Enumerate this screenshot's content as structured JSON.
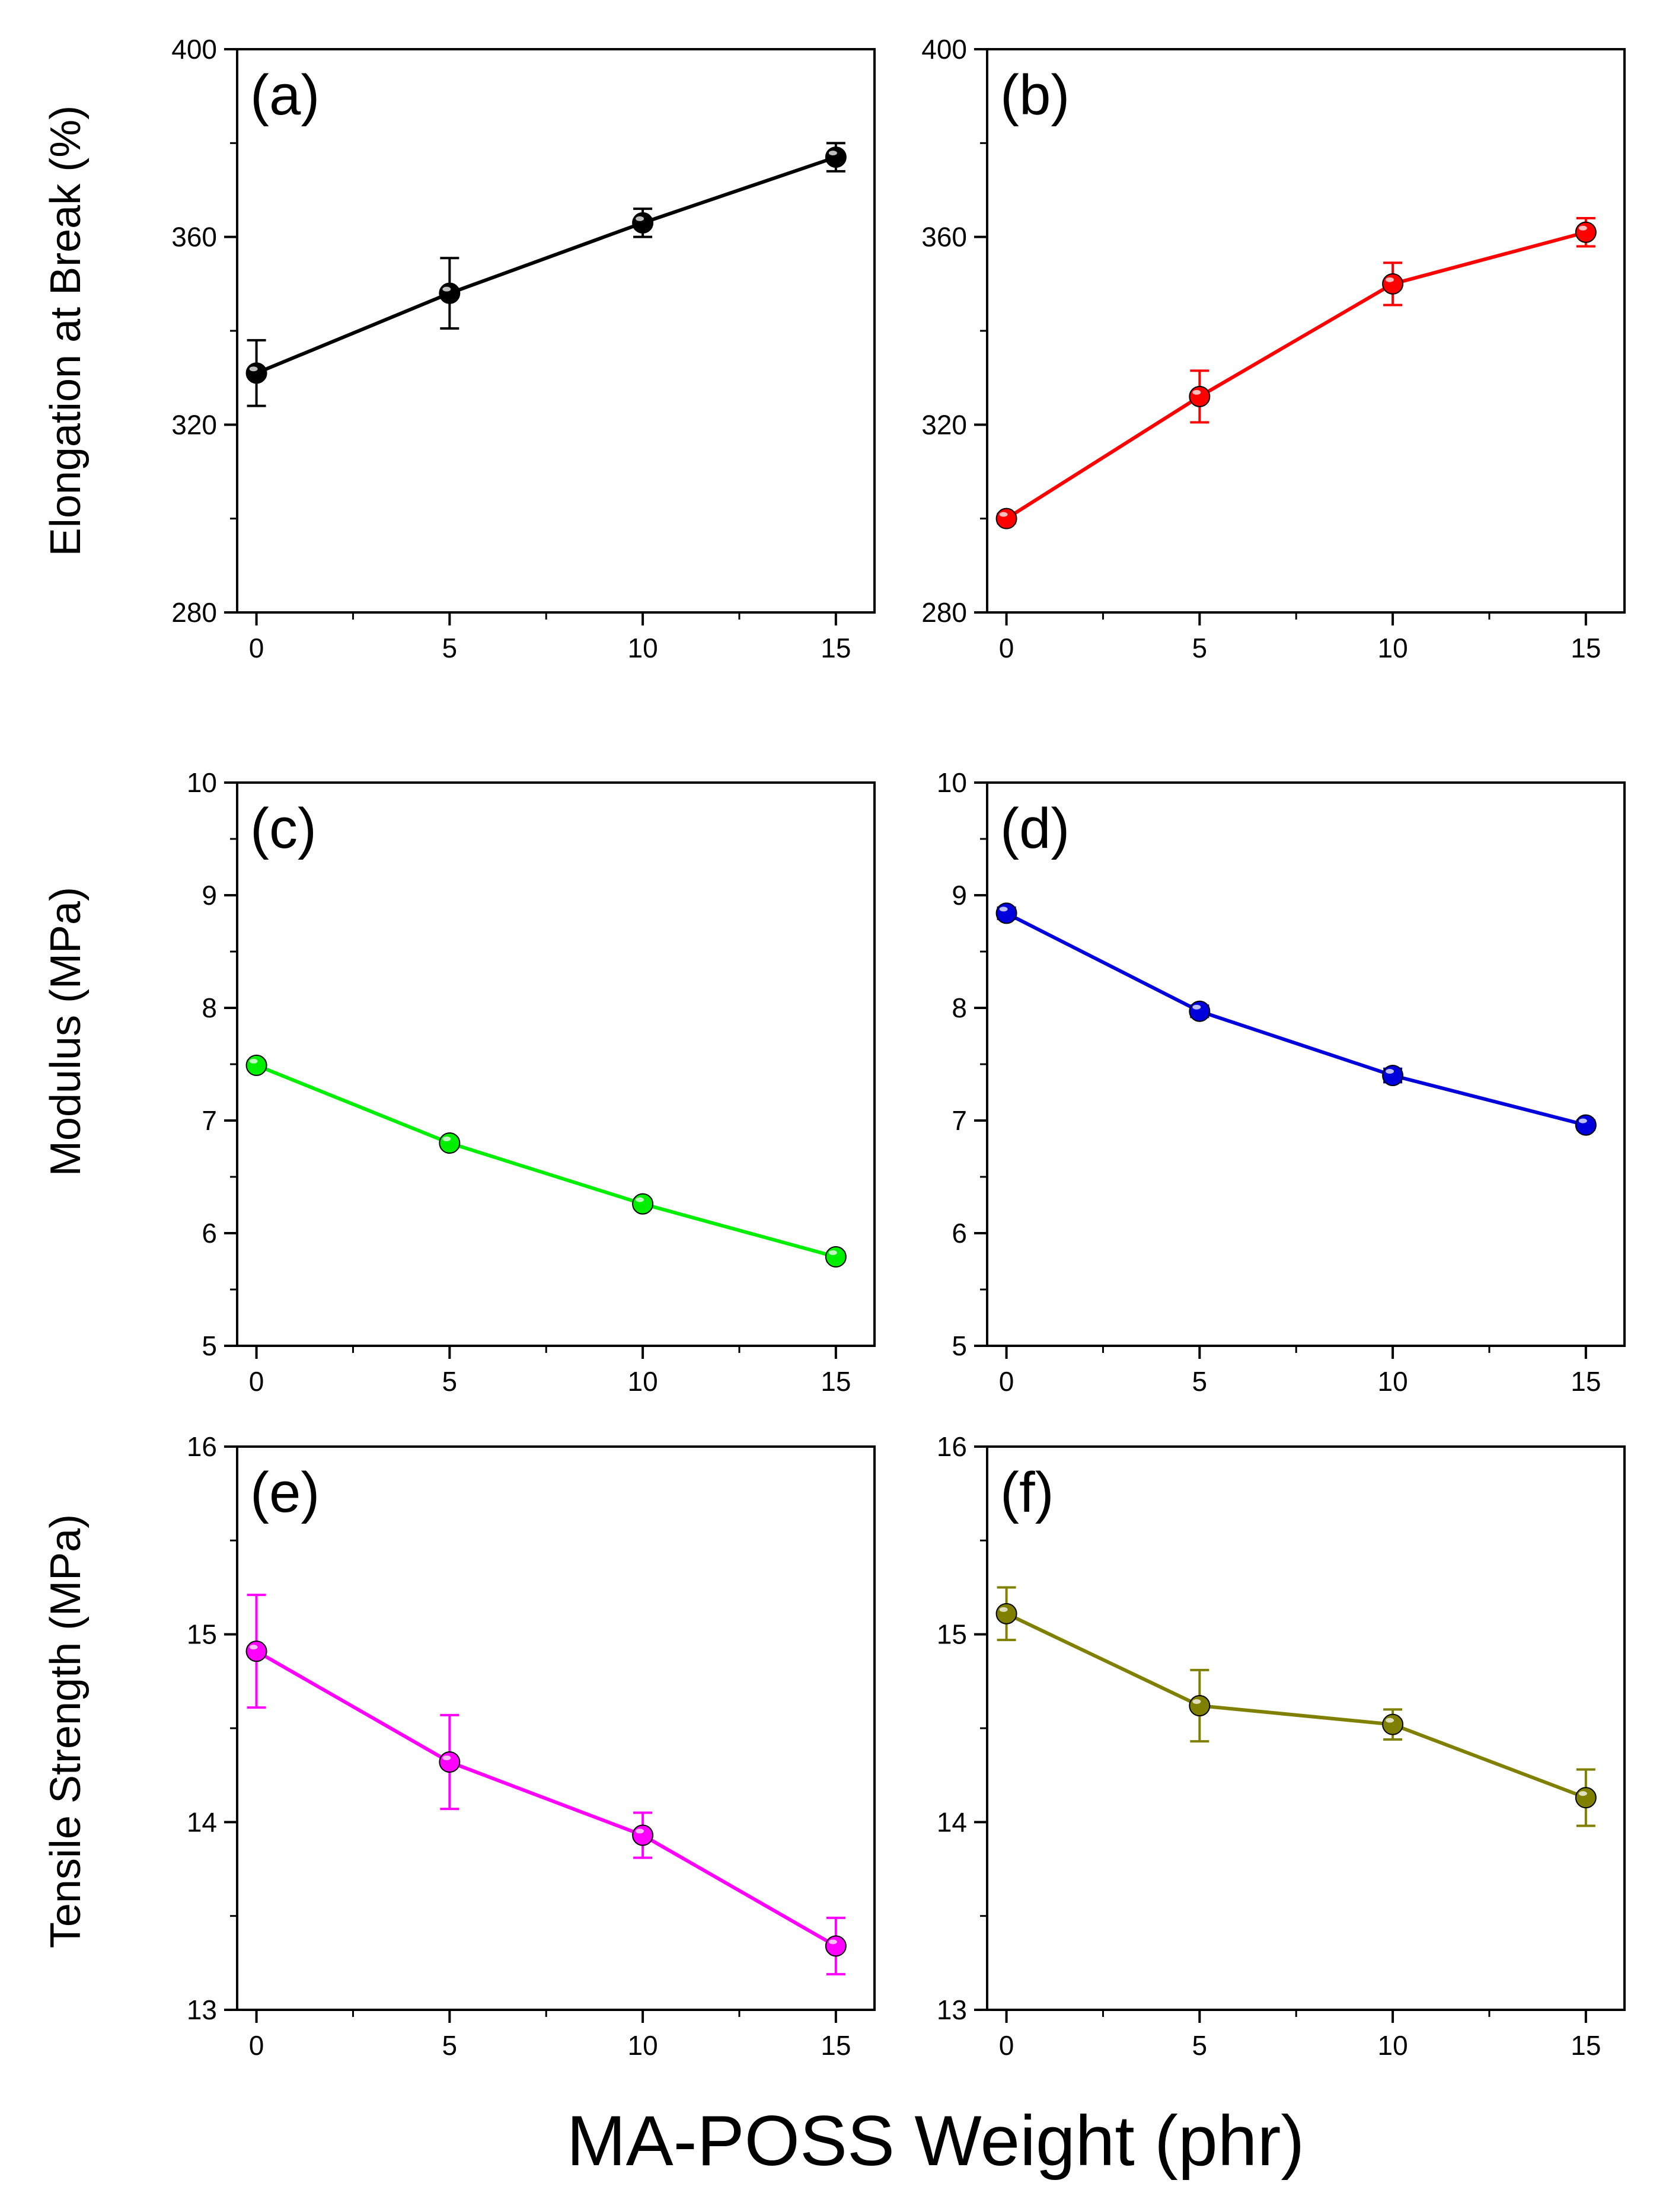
{
  "figure": {
    "xlabel": "MA-POSS Weight (phr)"
  },
  "chart_data": [
    {
      "type": "line",
      "panel": "(a)",
      "ylabel": "Elongation at Break (%)",
      "x": [
        0,
        5,
        10,
        15
      ],
      "values": [
        331,
        348,
        363,
        377
      ],
      "errors": [
        7,
        7.5,
        3,
        3
      ],
      "color": "#000000",
      "xlim": [
        -0.5,
        16
      ],
      "ylim": [
        280,
        400
      ],
      "yticks": [
        280,
        320,
        360,
        400
      ],
      "xticks": [
        0,
        5,
        10,
        15
      ]
    },
    {
      "type": "line",
      "panel": "(b)",
      "ylabel": "",
      "x": [
        0,
        5,
        10,
        15
      ],
      "values": [
        300,
        326,
        350,
        361
      ],
      "errors": [
        1,
        5.5,
        4.5,
        3
      ],
      "color": "#ff0000",
      "xlim": [
        -0.5,
        16
      ],
      "ylim": [
        280,
        400
      ],
      "yticks": [
        280,
        320,
        360,
        400
      ],
      "xticks": [
        0,
        5,
        10,
        15
      ]
    },
    {
      "type": "line",
      "panel": "(c)",
      "ylabel": "Modulus (MPa)",
      "x": [
        0,
        5,
        10,
        15
      ],
      "values": [
        7.49,
        6.8,
        6.26,
        5.79
      ],
      "errors": [
        0.04,
        0.04,
        0.04,
        0.04
      ],
      "color": "#00ee00",
      "xlim": [
        -0.5,
        16
      ],
      "ylim": [
        5,
        10
      ],
      "yticks": [
        5,
        6,
        7,
        8,
        9,
        10
      ],
      "xticks": [
        0,
        5,
        10,
        15
      ]
    },
    {
      "type": "line",
      "panel": "(d)",
      "ylabel": "",
      "x": [
        0,
        5,
        10,
        15
      ],
      "values": [
        8.84,
        7.97,
        7.4,
        6.96
      ],
      "errors": [
        0.05,
        0.05,
        0.06,
        0.04
      ],
      "color": "#0000dd",
      "xlim": [
        -0.5,
        16
      ],
      "ylim": [
        5,
        10
      ],
      "yticks": [
        5,
        6,
        7,
        8,
        9,
        10
      ],
      "xticks": [
        0,
        5,
        10,
        15
      ]
    },
    {
      "type": "line",
      "panel": "(e)",
      "ylabel": "Tensile Strength (MPa)",
      "x": [
        0,
        5,
        10,
        15
      ],
      "values": [
        14.91,
        14.32,
        13.93,
        13.34
      ],
      "errors": [
        0.3,
        0.25,
        0.12,
        0.15
      ],
      "color": "#ff00ff",
      "xlim": [
        -0.5,
        16
      ],
      "ylim": [
        13,
        16
      ],
      "yticks": [
        13,
        14,
        15,
        16
      ],
      "xticks": [
        0,
        5,
        10,
        15
      ]
    },
    {
      "type": "line",
      "panel": "(f)",
      "ylabel": "",
      "x": [
        0,
        5,
        10,
        15
      ],
      "values": [
        15.11,
        14.62,
        14.52,
        14.13
      ],
      "errors": [
        0.14,
        0.19,
        0.08,
        0.15
      ],
      "color": "#808000",
      "xlim": [
        -0.5,
        16
      ],
      "ylim": [
        13,
        16
      ],
      "yticks": [
        13,
        14,
        15,
        16
      ],
      "xticks": [
        0,
        5,
        10,
        15
      ]
    }
  ]
}
